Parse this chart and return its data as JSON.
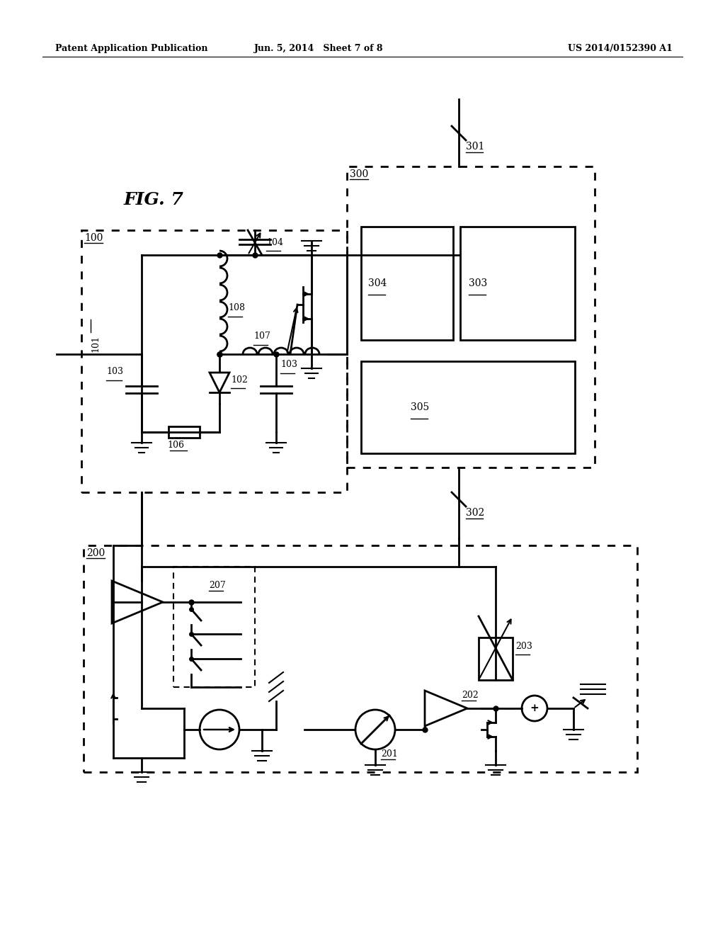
{
  "bg_color": "#ffffff",
  "header_left": "Patent Application Publication",
  "header_center": "Jun. 5, 2014   Sheet 7 of 8",
  "header_right": "US 2014/0152390 A1"
}
